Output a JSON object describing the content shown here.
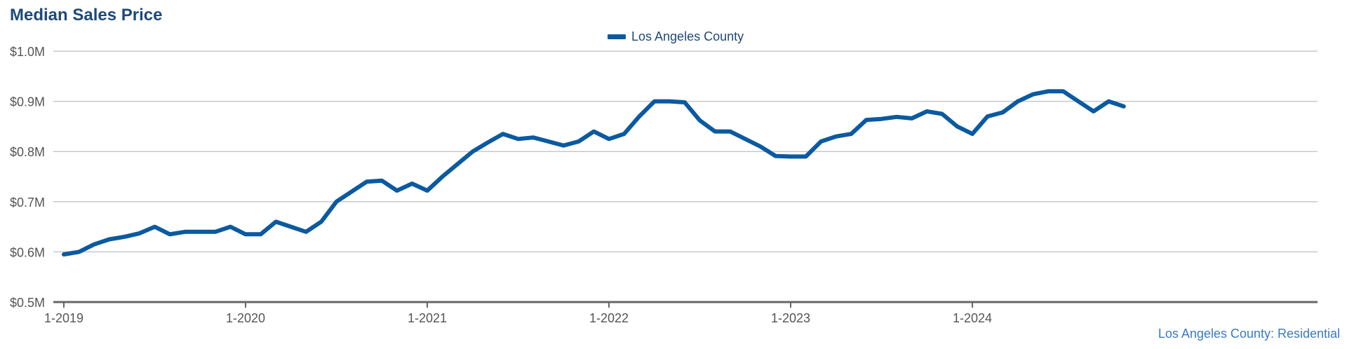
{
  "title": "Median Sales Price",
  "source_label": "Los Angeles County: Residential",
  "colors": {
    "series": "#0b5aa0",
    "title": "#1d4a78",
    "grid": "#c8c8c8",
    "axis": "#666666",
    "tick_text": "#555555"
  },
  "chart_data": {
    "type": "line",
    "title": "Median Sales Price",
    "xlabel": "",
    "ylabel": "",
    "ylim": [
      0.5,
      1.0
    ],
    "y_unit": "$M",
    "yticks": [
      "$0.5M",
      "$0.6M",
      "$0.7M",
      "$0.8M",
      "$0.9M",
      "$1.0M"
    ],
    "ytick_values": [
      0.5,
      0.6,
      0.7,
      0.8,
      0.9,
      1.0
    ],
    "xticks": [
      "1-2019",
      "1-2020",
      "1-2021",
      "1-2022",
      "1-2023",
      "1-2024"
    ],
    "x_start": "2019-01",
    "legend": "top-center",
    "grid": true,
    "series": [
      {
        "name": "Los Angeles County",
        "x": [
          "2019-01",
          "2019-02",
          "2019-03",
          "2019-04",
          "2019-05",
          "2019-06",
          "2019-07",
          "2019-08",
          "2019-09",
          "2019-10",
          "2019-11",
          "2019-12",
          "2020-01",
          "2020-02",
          "2020-03",
          "2020-04",
          "2020-05",
          "2020-06",
          "2020-07",
          "2020-08",
          "2020-09",
          "2020-10",
          "2020-11",
          "2020-12",
          "2021-01",
          "2021-02",
          "2021-03",
          "2021-04",
          "2021-05",
          "2021-06",
          "2021-07",
          "2021-08",
          "2021-09",
          "2021-10",
          "2021-11",
          "2021-12",
          "2022-01",
          "2022-02",
          "2022-03",
          "2022-04",
          "2022-05",
          "2022-06",
          "2022-07",
          "2022-08",
          "2022-09",
          "2022-10",
          "2022-11",
          "2022-12",
          "2023-01",
          "2023-02",
          "2023-03",
          "2023-04",
          "2023-05",
          "2023-06",
          "2023-07",
          "2023-08",
          "2023-09",
          "2023-10",
          "2023-11",
          "2023-12",
          "2024-01",
          "2024-02",
          "2024-03",
          "2024-04",
          "2024-05",
          "2024-06",
          "2024-07",
          "2024-08",
          "2024-09",
          "2024-10",
          "2024-11"
        ],
        "values": [
          0.595,
          0.6,
          0.615,
          0.625,
          0.63,
          0.637,
          0.65,
          0.635,
          0.64,
          0.64,
          0.64,
          0.65,
          0.635,
          0.635,
          0.66,
          0.65,
          0.64,
          0.66,
          0.7,
          0.72,
          0.74,
          0.742,
          0.722,
          0.736,
          0.722,
          0.75,
          0.775,
          0.8,
          0.818,
          0.835,
          0.825,
          0.828,
          0.82,
          0.812,
          0.82,
          0.84,
          0.825,
          0.835,
          0.87,
          0.9,
          0.9,
          0.898,
          0.862,
          0.84,
          0.84,
          0.825,
          0.81,
          0.791,
          0.79,
          0.79,
          0.82,
          0.83,
          0.835,
          0.863,
          0.865,
          0.869,
          0.866,
          0.88,
          0.875,
          0.85,
          0.835,
          0.87,
          0.878,
          0.9,
          0.914,
          0.92,
          0.92,
          0.9,
          0.88,
          0.9,
          0.89
        ]
      }
    ]
  }
}
